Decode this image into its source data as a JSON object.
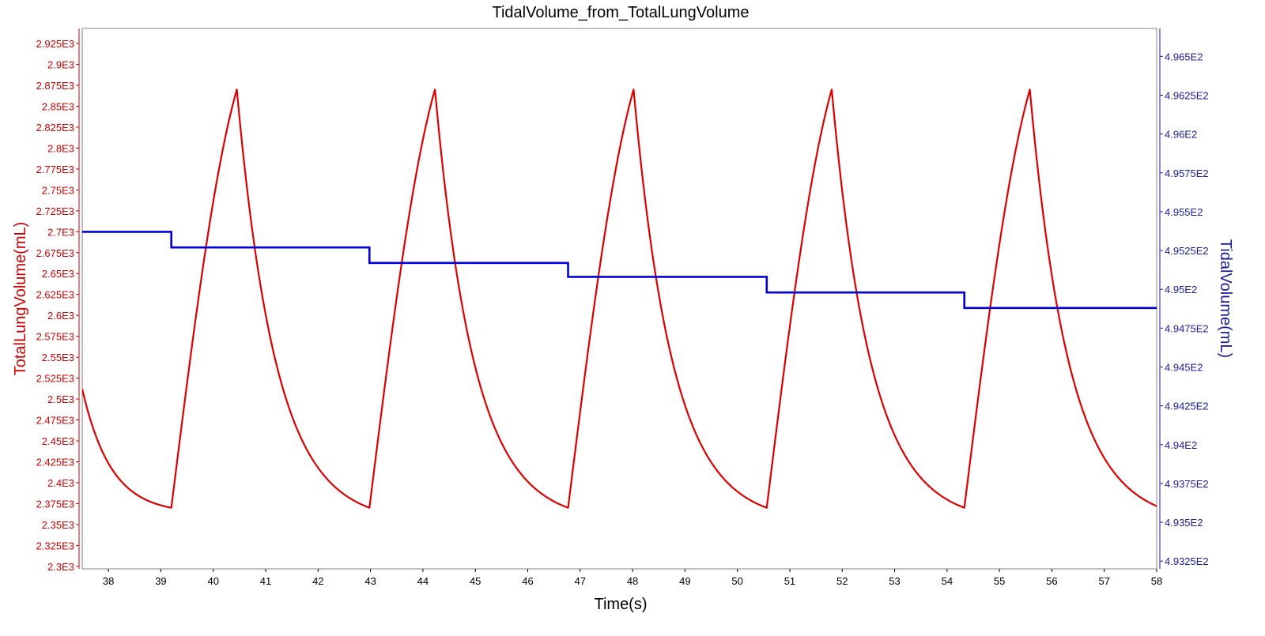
{
  "chart_data": {
    "type": "line",
    "title": "TidalVolume_from_TotalLungVolume",
    "xlabel": "Time(s)",
    "ylabel_left": "TotalLungVolume(mL)",
    "ylabel_right": "TidalVolume(mL)",
    "xlim": [
      37.5,
      58.0
    ],
    "ylim_left": [
      2297,
      2943
    ],
    "ylim_right": [
      493.2,
      496.68
    ],
    "x_ticks": [
      38,
      39,
      40,
      41,
      42,
      43,
      44,
      45,
      46,
      47,
      48,
      49,
      50,
      51,
      52,
      53,
      54,
      55,
      56,
      57,
      58
    ],
    "x_tick_labels": [
      "38",
      "39",
      "40",
      "41",
      "42",
      "43",
      "44",
      "45",
      "46",
      "47",
      "48",
      "49",
      "50",
      "51",
      "52",
      "53",
      "54",
      "55",
      "56",
      "57",
      "58"
    ],
    "left_ticks": [
      2300,
      2325,
      2350,
      2375,
      2400,
      2425,
      2450,
      2475,
      2500,
      2525,
      2550,
      2575,
      2600,
      2625,
      2650,
      2675,
      2700,
      2725,
      2750,
      2775,
      2800,
      2825,
      2850,
      2875,
      2900,
      2925
    ],
    "left_tick_labels": [
      "2.3E3",
      "2.325E3",
      "2.35E3",
      "2.375E3",
      "2.4E3",
      "2.425E3",
      "2.45E3",
      "2.475E3",
      "2.5E3",
      "2.525E3",
      "2.55E3",
      "2.575E3",
      "2.6E3",
      "2.625E3",
      "2.65E3",
      "2.675E3",
      "2.7E3",
      "2.725E3",
      "2.75E3",
      "2.775E3",
      "2.8E3",
      "2.825E3",
      "2.85E3",
      "2.875E3",
      "2.9E3",
      "2.925E3"
    ],
    "right_ticks": [
      493.25,
      493.5,
      493.75,
      494.0,
      494.25,
      494.5,
      494.75,
      495.0,
      495.25,
      495.5,
      495.75,
      496.0,
      496.25,
      496.5
    ],
    "right_tick_labels": [
      "4.9325E2",
      "4.935E2",
      "4.9375E2",
      "4.94E2",
      "4.9425E2",
      "4.945E2",
      "4.9475E2",
      "4.95E2",
      "4.9525E2",
      "4.955E2",
      "4.9575E2",
      "4.96E2",
      "4.9625E2",
      "4.965E2"
    ],
    "series": [
      {
        "axis": "left",
        "color": "#dd0000",
        "breath": {
          "start_value": 2512,
          "trough_times": [
            39.2,
            42.98,
            46.77,
            50.56,
            54.33
          ],
          "peak_times": [
            40.45,
            44.23,
            48.02,
            51.8,
            55.58
          ],
          "trough_value": 2370,
          "peak_value": 2870,
          "end_time": 58.0,
          "end_value": 2372
        }
      },
      {
        "axis": "right",
        "color": "#0000dd",
        "steps": [
          {
            "x_start": 37.5,
            "x_end": 39.2,
            "value": 495.37
          },
          {
            "x_start": 39.2,
            "x_end": 42.98,
            "value": 495.27
          },
          {
            "x_start": 42.98,
            "x_end": 46.77,
            "value": 495.17
          },
          {
            "x_start": 46.77,
            "x_end": 50.56,
            "value": 495.08
          },
          {
            "x_start": 50.56,
            "x_end": 54.33,
            "value": 494.98
          },
          {
            "x_start": 54.33,
            "x_end": 58.0,
            "value": 494.88
          }
        ]
      }
    ],
    "colors": {
      "left_axis": "#cc0000",
      "right_axis": "#1a1a99",
      "frame": "#808080"
    },
    "grid": false,
    "legend": "none"
  }
}
